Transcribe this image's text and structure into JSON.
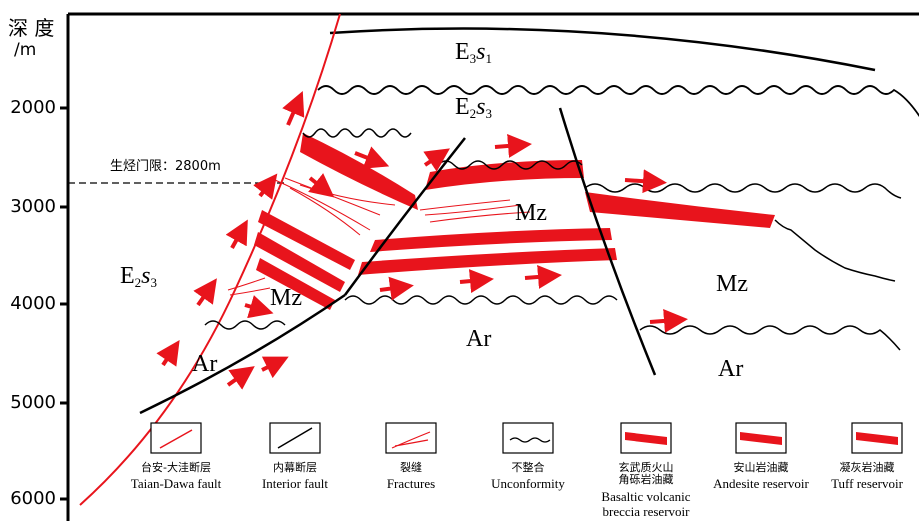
{
  "axis": {
    "title": "深 度",
    "unit": "/m",
    "ticks": [
      "2000",
      "3000",
      "4000",
      "5000",
      "6000"
    ]
  },
  "threshold": {
    "label": "生烃门限：2800m"
  },
  "units": {
    "e3s1": {
      "base": "E",
      "sub1": "3",
      "ital": "s",
      "sub2": "1"
    },
    "e2s3_top": {
      "base": "E",
      "sub1": "2",
      "ital": "s",
      "sub2": "3"
    },
    "e2s3_left": {
      "base": "E",
      "sub1": "2",
      "ital": "s",
      "sub2": "3"
    },
    "mz_left": "Mz",
    "mz_center": "Mz",
    "mz_right": "Mz",
    "ar_left": "Ar",
    "ar_center": "Ar",
    "ar_right": "Ar"
  },
  "legend": [
    {
      "zh": "台安-大洼断层",
      "en": "Taian-Dawa fault",
      "icon": "taian-dawa-fault-icon"
    },
    {
      "zh": "内幕断层",
      "en": "Interior fault",
      "icon": "interior-fault-icon"
    },
    {
      "zh": "裂缝",
      "en": "Fractures",
      "icon": "fractures-icon"
    },
    {
      "zh": "不整合",
      "en": "Unconformity",
      "icon": "unconformity-icon"
    },
    {
      "zh": "玄武质火山角砾岩油藏",
      "zh2": "角砾岩油藏",
      "en": "Basaltic volcanic",
      "en2": "breccia reservoir",
      "icon": "basaltic-breccia-reservoir-icon"
    },
    {
      "zh": "安山岩油藏",
      "en": "Andesite reservoir",
      "icon": "andesite-reservoir-icon"
    },
    {
      "zh": "凝灰岩油藏",
      "en": "Tuff reservoir",
      "icon": "tuff-reservoir-icon"
    }
  ],
  "colors": {
    "reservoir": "#e8141c",
    "fault": "#e8141c",
    "line": "#000000"
  }
}
